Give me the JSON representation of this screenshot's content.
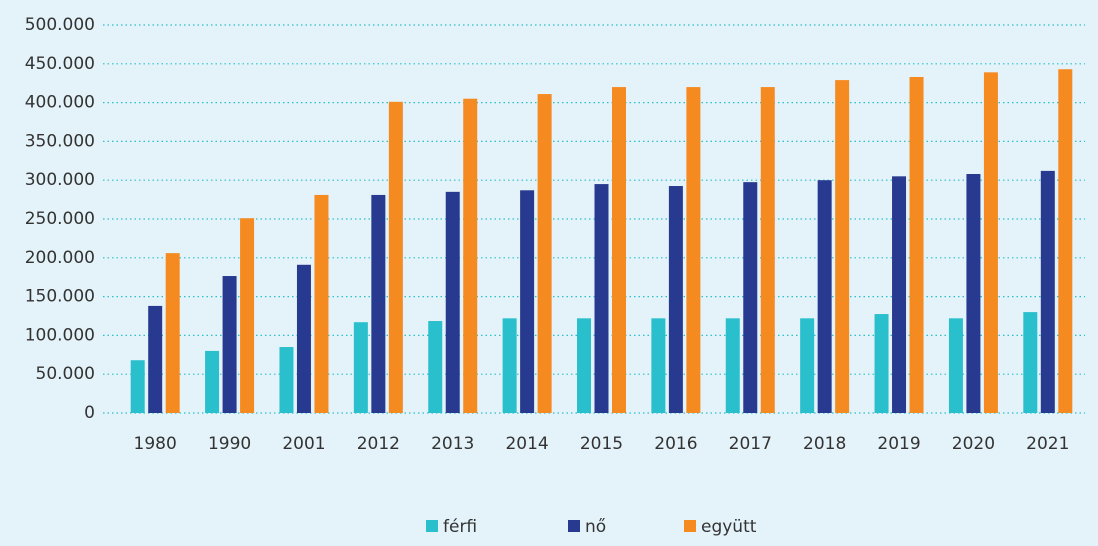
{
  "chart_data": {
    "type": "bar",
    "categories": [
      "1980",
      "1990",
      "2001",
      "2012",
      "2013",
      "2014",
      "2015",
      "2016",
      "2017",
      "2018",
      "2019",
      "2020",
      "2021"
    ],
    "series": [
      {
        "name": "férfi",
        "color": "#29bfcc",
        "values": [
          68000,
          80000,
          85000,
          117000,
          118500,
          122000,
          122000,
          122000,
          122000,
          122000,
          127500,
          122000,
          130000
        ]
      },
      {
        "name": "nő",
        "color": "#283a8f",
        "values": [
          138000,
          176500,
          191000,
          281000,
          285000,
          287000,
          295000,
          292500,
          297500,
          300000,
          305000,
          308000,
          312000
        ]
      },
      {
        "name": "együtt",
        "color": "#f58a20",
        "values": [
          206000,
          251000,
          281000,
          401000,
          405000,
          411000,
          420000,
          420000,
          420000,
          429000,
          433000,
          439000,
          443000
        ]
      }
    ],
    "ylim": [
      0,
      500000
    ],
    "yticks": [
      0,
      {
        "value": 50000,
        "label": "50.000"
      },
      {
        "value": 100000,
        "label": "100.000"
      },
      {
        "value": 150000,
        "label": "150.000"
      },
      {
        "value": 200000,
        "label": "200.000"
      },
      {
        "value": 250000,
        "label": "250.000"
      },
      {
        "value": 300000,
        "label": "300.000"
      },
      {
        "value": 350000,
        "label": "350.000"
      },
      {
        "value": 400000,
        "label": "400.000"
      },
      {
        "value": 450000,
        "label": "450.000"
      },
      {
        "value": 500000,
        "label": "500.000"
      }
    ],
    "grid": true,
    "legend": "bottom"
  }
}
